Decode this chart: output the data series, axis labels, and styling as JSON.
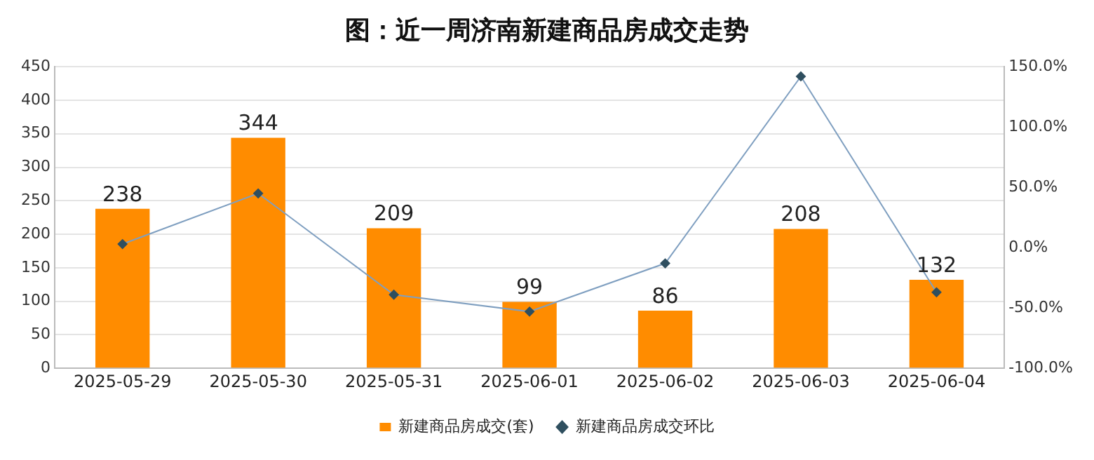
{
  "chart_data": {
    "type": "bar",
    "title": "图：近一周济南新建商品房成交走势",
    "categories": [
      "2025-05-29",
      "2025-05-30",
      "2025-05-31",
      "2025-06-01",
      "2025-06-02",
      "2025-06-03",
      "2025-06-04"
    ],
    "series": [
      {
        "name": "新建商品房成交(套)",
        "color": "#ff8c00",
        "values": [
          238,
          344,
          209,
          99,
          86,
          208,
          132
        ],
        "value_labels": [
          "238",
          "344",
          "209",
          "99",
          "86",
          "208",
          "132"
        ]
      },
      {
        "name": "新建商品房成交环比",
        "type": "line",
        "axis": "y2",
        "color": "#7f9fc0",
        "marker": "diamond",
        "values": [
          3,
          45,
          -39,
          -53,
          -13,
          142,
          -37
        ]
      }
    ],
    "ylim": [
      0,
      450
    ],
    "yticks": [
      0,
      50,
      100,
      150,
      200,
      250,
      300,
      350,
      400,
      450
    ],
    "y2lim": [
      -100,
      150
    ],
    "y2ticks": [
      {
        "value": -100,
        "label": "-100.0%"
      },
      {
        "value": -50,
        "label": "-50.0%"
      },
      {
        "value": 0,
        "label": "0.0%"
      },
      {
        "value": 50,
        "label": "50.0%"
      },
      {
        "value": 100,
        "label": "100.0%"
      },
      {
        "value": 150,
        "label": "150.0%"
      }
    ],
    "grid": "y",
    "legend": "bottom"
  }
}
